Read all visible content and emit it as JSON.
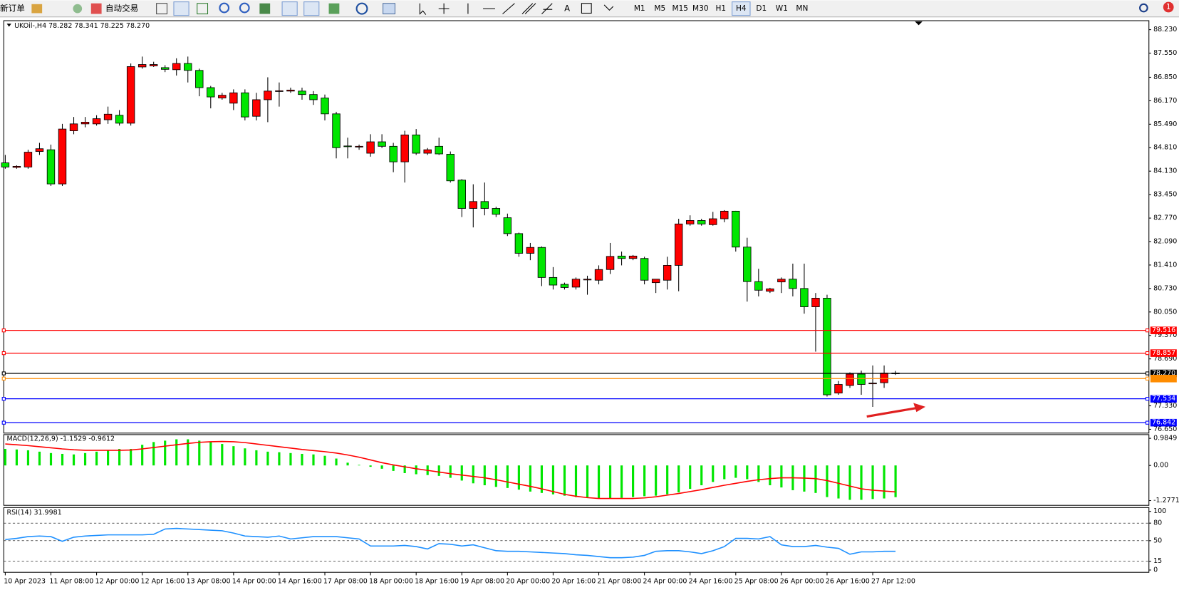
{
  "toolbar": {
    "new_order": "新订单",
    "auto_trading": "自动交易",
    "text_tool": "A",
    "timeframes": [
      "M1",
      "M5",
      "M15",
      "M30",
      "H1",
      "H4",
      "D1",
      "W1",
      "MN"
    ],
    "active_timeframe": 5,
    "notification": "1"
  },
  "chart_data": [
    {
      "type": "candlestick",
      "title": "UKOil-,H4 78.282 78.341 78.225 78.270",
      "up_color": "#ff0000",
      "down_color": "#00e600",
      "categories": [
        "10 Apr 2023",
        null,
        null,
        null,
        "11 Apr 08:00",
        null,
        null,
        null,
        "12 Apr 00:00",
        null,
        null,
        null,
        "12 Apr 16:00",
        null,
        null,
        null,
        "13 Apr 08:00",
        null,
        null,
        null,
        "14 Apr 00:00",
        null,
        null,
        null,
        "14 Apr 16:00",
        null,
        null,
        null,
        "17 Apr 08:00",
        null,
        null,
        null,
        "18 Apr 00:00",
        null,
        null,
        null,
        "18 Apr 16:00",
        null,
        null,
        null,
        "19 Apr 08:00",
        null,
        null,
        null,
        "20 Apr 00:00",
        null,
        null,
        null,
        "20 Apr 16:00",
        null,
        null,
        null,
        "21 Apr 08:00",
        null,
        null,
        null,
        "24 Apr 00:00",
        null,
        null,
        null,
        "24 Apr 16:00",
        null,
        null,
        null,
        "25 Apr 08:00",
        null,
        null,
        null,
        "26 Apr 00:00",
        null,
        null,
        null,
        "26 Apr 16:00",
        null,
        null,
        null,
        "27 Apr 12:00",
        null,
        null
      ],
      "ohlc": [
        [
          84.37,
          84.6,
          84.2,
          84.25
        ],
        [
          84.24,
          84.3,
          84.2,
          84.27
        ],
        [
          84.25,
          84.75,
          84.2,
          84.68
        ],
        [
          84.7,
          84.95,
          84.6,
          84.78
        ],
        [
          84.75,
          84.9,
          83.7,
          83.76
        ],
        [
          83.76,
          85.5,
          83.7,
          85.35
        ],
        [
          85.3,
          85.7,
          85.2,
          85.5
        ],
        [
          85.5,
          85.7,
          85.4,
          85.55
        ],
        [
          85.5,
          85.75,
          85.45,
          85.65
        ],
        [
          85.62,
          86.0,
          85.5,
          85.78
        ],
        [
          85.75,
          85.9,
          85.45,
          85.52
        ],
        [
          85.52,
          87.25,
          85.45,
          87.16
        ],
        [
          87.15,
          87.45,
          87.1,
          87.22
        ],
        [
          87.18,
          87.3,
          87.15,
          87.22
        ],
        [
          87.13,
          87.2,
          87.0,
          87.08
        ],
        [
          87.07,
          87.4,
          86.9,
          87.25
        ],
        [
          87.25,
          87.45,
          86.7,
          87.05
        ],
        [
          87.05,
          87.1,
          86.3,
          86.55
        ],
        [
          86.55,
          86.6,
          85.95,
          86.28
        ],
        [
          86.25,
          86.4,
          86.2,
          86.33
        ],
        [
          86.1,
          86.5,
          85.9,
          86.4
        ],
        [
          86.4,
          86.5,
          85.6,
          85.7
        ],
        [
          85.72,
          86.4,
          85.6,
          86.2
        ],
        [
          86.2,
          86.85,
          85.55,
          86.45
        ],
        [
          86.45,
          86.7,
          86.0,
          86.46
        ],
        [
          86.45,
          86.55,
          86.4,
          86.48
        ],
        [
          86.45,
          86.55,
          86.2,
          86.35
        ],
        [
          86.35,
          86.45,
          86.05,
          86.2
        ],
        [
          86.25,
          86.35,
          85.6,
          85.79
        ],
        [
          85.79,
          85.85,
          84.5,
          84.81
        ],
        [
          84.86,
          85.1,
          84.5,
          84.84
        ],
        [
          84.83,
          84.9,
          84.75,
          84.85
        ],
        [
          84.65,
          85.2,
          84.55,
          84.98
        ],
        [
          84.98,
          85.2,
          84.8,
          84.85
        ],
        [
          84.85,
          84.95,
          84.1,
          84.4
        ],
        [
          84.4,
          85.3,
          83.8,
          85.18
        ],
        [
          85.18,
          85.35,
          84.6,
          84.65
        ],
        [
          84.65,
          84.8,
          84.6,
          84.75
        ],
        [
          84.85,
          85.1,
          84.6,
          84.63
        ],
        [
          84.62,
          84.7,
          83.8,
          83.85
        ],
        [
          83.87,
          83.9,
          82.8,
          83.05
        ],
        [
          83.05,
          83.75,
          82.5,
          83.25
        ],
        [
          83.25,
          83.8,
          82.85,
          83.05
        ],
        [
          83.05,
          83.1,
          82.8,
          82.88
        ],
        [
          82.78,
          82.9,
          82.25,
          82.32
        ],
        [
          82.32,
          82.35,
          81.65,
          81.75
        ],
        [
          81.75,
          82.05,
          81.55,
          81.92
        ],
        [
          81.92,
          81.95,
          80.8,
          81.05
        ],
        [
          81.05,
          81.35,
          80.7,
          80.83
        ],
        [
          80.85,
          80.9,
          80.7,
          80.76
        ],
        [
          80.77,
          81.05,
          80.7,
          81.0
        ],
        [
          80.99,
          81.1,
          80.55,
          81.0
        ],
        [
          80.97,
          81.4,
          80.85,
          81.28
        ],
        [
          81.28,
          82.05,
          81.15,
          81.66
        ],
        [
          81.67,
          81.8,
          81.4,
          81.6
        ],
        [
          81.6,
          81.7,
          81.55,
          81.67
        ],
        [
          81.6,
          81.65,
          80.85,
          80.97
        ],
        [
          80.9,
          81.0,
          80.6,
          81.0
        ],
        [
          80.97,
          81.65,
          80.7,
          81.4
        ],
        [
          81.4,
          82.75,
          80.65,
          82.6
        ],
        [
          82.6,
          82.85,
          82.55,
          82.7
        ],
        [
          82.7,
          82.75,
          82.55,
          82.6
        ],
        [
          82.58,
          82.95,
          82.55,
          82.75
        ],
        [
          82.75,
          83.0,
          82.65,
          82.97
        ],
        [
          82.97,
          82.98,
          81.8,
          81.93
        ],
        [
          81.93,
          82.2,
          80.35,
          80.93
        ],
        [
          80.93,
          81.3,
          80.5,
          80.68
        ],
        [
          80.65,
          80.75,
          80.6,
          80.72
        ],
        [
          80.92,
          81.05,
          80.6,
          81.0
        ],
        [
          81.0,
          81.45,
          80.5,
          80.73
        ],
        [
          80.73,
          81.45,
          80.0,
          80.2
        ],
        [
          80.2,
          80.6,
          78.9,
          80.45
        ],
        [
          80.45,
          80.55,
          77.6,
          77.65
        ],
        [
          77.7,
          78.05,
          77.65,
          77.95
        ],
        [
          77.92,
          78.3,
          77.85,
          78.25
        ],
        [
          78.25,
          78.35,
          77.65,
          77.95
        ],
        [
          77.98,
          78.5,
          77.3,
          77.99
        ],
        [
          78.0,
          78.5,
          77.85,
          78.28
        ],
        [
          78.282,
          78.341,
          78.225,
          78.27
        ]
      ],
      "ylim": [
        76.54,
        88.49
      ],
      "yticks": [
        {
          "value": 88.23,
          "label": "88.230"
        },
        {
          "value": 87.55,
          "label": "87.550"
        },
        {
          "value": 86.85,
          "label": "86.850"
        },
        {
          "value": 86.17,
          "label": "86.170"
        },
        {
          "value": 85.49,
          "label": "85.490"
        },
        {
          "value": 84.81,
          "label": "84.810"
        },
        {
          "value": 84.13,
          "label": "84.130"
        },
        {
          "value": 83.45,
          "label": "83.450"
        },
        {
          "value": 82.77,
          "label": "82.770"
        },
        {
          "value": 82.09,
          "label": "82.090"
        },
        {
          "value": 81.41,
          "label": "81.410"
        },
        {
          "value": 80.73,
          "label": "80.730"
        },
        {
          "value": 80.05,
          "label": "80.050"
        },
        {
          "value": 79.37,
          "label": "79.370"
        },
        {
          "value": 78.69,
          "label": "78.690"
        },
        {
          "value": 77.33,
          "label": "77.330"
        },
        {
          "value": 76.65,
          "label": "76.650"
        }
      ],
      "levels": [
        {
          "value": 79.516,
          "label": "79.516",
          "color": "#ff0000"
        },
        {
          "value": 78.857,
          "label": "78.857",
          "color": "#ff0000"
        },
        {
          "value": 78.27,
          "label": "78.270",
          "color": "#000000"
        },
        {
          "value": 78.12,
          "color": "#ff8c00"
        },
        {
          "value": 77.534,
          "label": "77.534",
          "color": "#0000ff"
        },
        {
          "value": 76.842,
          "label": "76.842",
          "color": "#0000ff"
        }
      ]
    },
    {
      "type": "macd",
      "title": "MACD(12,26,9) -1.1529 -0.9612",
      "color": "#00e600",
      "signal_color": "#ff0000",
      "values": [
        0.6,
        0.58,
        0.55,
        0.5,
        0.45,
        0.42,
        0.4,
        0.45,
        0.5,
        0.55,
        0.6,
        0.6,
        0.75,
        0.85,
        0.9,
        0.95,
        0.95,
        0.9,
        0.85,
        0.78,
        0.7,
        0.62,
        0.55,
        0.5,
        0.48,
        0.45,
        0.42,
        0.4,
        0.35,
        0.25,
        0.1,
        0.02,
        -0.05,
        -0.12,
        -0.2,
        -0.28,
        -0.32,
        -0.35,
        -0.38,
        -0.45,
        -0.55,
        -0.65,
        -0.72,
        -0.78,
        -0.82,
        -0.88,
        -0.95,
        -1.0,
        -1.05,
        -1.1,
        -1.15,
        -1.18,
        -1.2,
        -1.2,
        -1.18,
        -1.15,
        -1.12,
        -1.1,
        -1.05,
        -0.98,
        -0.85,
        -0.72,
        -0.6,
        -0.5,
        -0.45,
        -0.5,
        -0.6,
        -0.72,
        -0.8,
        -0.9,
        -0.95,
        -1.0,
        -1.15,
        -1.2,
        -1.25,
        -1.25,
        -1.22,
        -1.2,
        -1.1529
      ],
      "signal": [
        0.78,
        0.75,
        0.72,
        0.68,
        0.64,
        0.6,
        0.57,
        0.55,
        0.55,
        0.55,
        0.55,
        0.56,
        0.6,
        0.65,
        0.7,
        0.75,
        0.8,
        0.84,
        0.86,
        0.87,
        0.86,
        0.83,
        0.78,
        0.73,
        0.68,
        0.63,
        0.58,
        0.54,
        0.5,
        0.45,
        0.38,
        0.3,
        0.2,
        0.1,
        0.02,
        -0.05,
        -0.12,
        -0.18,
        -0.24,
        -0.3,
        -0.35,
        -0.4,
        -0.45,
        -0.52,
        -0.6,
        -0.68,
        -0.76,
        -0.85,
        -0.95,
        -1.05,
        -1.12,
        -1.17,
        -1.2,
        -1.2,
        -1.2,
        -1.2,
        -1.18,
        -1.14,
        -1.08,
        -1.02,
        -0.95,
        -0.88,
        -0.8,
        -0.72,
        -0.65,
        -0.58,
        -0.52,
        -0.48,
        -0.45,
        -0.45,
        -0.46,
        -0.48,
        -0.55,
        -0.65,
        -0.75,
        -0.85,
        -0.9,
        -0.93,
        -0.9612
      ],
      "ylim": [
        -1.45,
        1.12
      ],
      "yticks": [
        0.9849,
        {
          "value": 0,
          "label": "0.00"
        },
        -1.2771
      ]
    },
    {
      "type": "rsi",
      "title": "RSI(14) 31.9981",
      "color": "#1e90ff",
      "values": [
        52,
        54,
        57,
        58,
        57,
        49,
        56,
        58,
        59,
        60,
        60,
        60,
        60,
        61,
        70,
        71,
        70,
        69,
        68,
        67,
        63,
        58,
        57,
        56,
        58,
        53,
        55,
        57,
        57,
        57,
        55,
        53,
        41,
        41,
        41,
        42,
        40,
        36,
        45,
        44,
        41,
        43,
        38,
        33,
        32,
        32,
        31,
        30,
        29,
        28,
        26,
        25,
        23,
        21,
        21,
        22,
        25,
        32,
        33,
        33,
        31,
        28,
        33,
        40,
        54,
        54,
        53,
        57,
        43,
        40,
        40,
        42,
        39,
        37,
        27,
        31,
        31,
        32,
        31.9981
      ],
      "ylim": [
        -3.9,
        106.5
      ],
      "yticks": [
        100,
        80,
        50,
        15,
        0
      ],
      "dashed_levels": [
        80,
        50,
        15
      ]
    }
  ]
}
